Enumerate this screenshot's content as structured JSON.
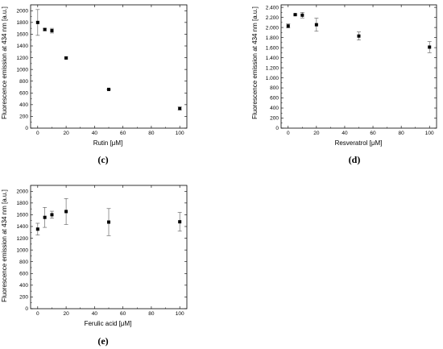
{
  "chart_data": [
    {
      "type": "scatter",
      "panel_label": "(c)",
      "xlabel": "Rutin [μM]",
      "ylabel": "Fluorescence emission at 434 nm [a.u.]",
      "x": [
        0,
        5,
        10,
        20,
        50,
        100
      ],
      "y": [
        1800,
        1680,
        1660,
        1195,
        660,
        335
      ],
      "error": [
        220,
        20,
        40,
        15,
        10,
        25
      ],
      "xlim": [
        -5,
        105
      ],
      "ylim": [
        0,
        2100
      ],
      "xticks": [
        0,
        20,
        40,
        60,
        80,
        100
      ],
      "yticks": [
        0,
        200,
        400,
        600,
        800,
        1000,
        1200,
        1400,
        1600,
        1800,
        2000
      ],
      "ytick_labels": [
        "0",
        "200",
        "400",
        "600",
        "800",
        "1000",
        "1200",
        "1400",
        "1600",
        "1800",
        "2000"
      ],
      "grid": false
    },
    {
      "type": "scatter",
      "panel_label": "(d)",
      "xlabel": "Resveratrol [μM]",
      "ylabel": "Fluorescence emission at 434 nm [a.u.]",
      "x": [
        0,
        5,
        10,
        20,
        50,
        100
      ],
      "y": [
        2030,
        2255,
        2245,
        2055,
        1830,
        1610
      ],
      "error": [
        40,
        15,
        55,
        130,
        80,
        110
      ],
      "xlim": [
        -5,
        105
      ],
      "ylim": [
        0,
        2450
      ],
      "xticks": [
        0,
        20,
        40,
        60,
        80,
        100
      ],
      "yticks": [
        0,
        200,
        400,
        600,
        800,
        1000,
        1200,
        1400,
        1600,
        1800,
        2000,
        2200,
        2400
      ],
      "ytick_labels": [
        "0",
        "200",
        "400",
        "600",
        "800",
        "1.000",
        "1.200",
        "1.400",
        "1.600",
        "1.800",
        "2.000",
        "2.200",
        "2.400"
      ],
      "grid": false
    },
    {
      "type": "scatter",
      "panel_label": "(e)",
      "xlabel": "Ferulic acid [μM]",
      "ylabel": "Fluorescence emission at 434 nm [a.u.]",
      "x": [
        0,
        5,
        10,
        20,
        50,
        100
      ],
      "y": [
        1355,
        1555,
        1600,
        1655,
        1475,
        1480
      ],
      "error": [
        100,
        170,
        60,
        220,
        230,
        160
      ],
      "xlim": [
        -5,
        105
      ],
      "ylim": [
        0,
        2100
      ],
      "xticks": [
        0,
        20,
        40,
        60,
        80,
        100
      ],
      "yticks": [
        0,
        200,
        400,
        600,
        800,
        1000,
        1200,
        1400,
        1600,
        1800,
        2000
      ],
      "ytick_labels": [
        "0",
        "200",
        "400",
        "600",
        "800",
        "1000",
        "1200",
        "1400",
        "1600",
        "1800",
        "2000"
      ],
      "grid": false
    }
  ]
}
